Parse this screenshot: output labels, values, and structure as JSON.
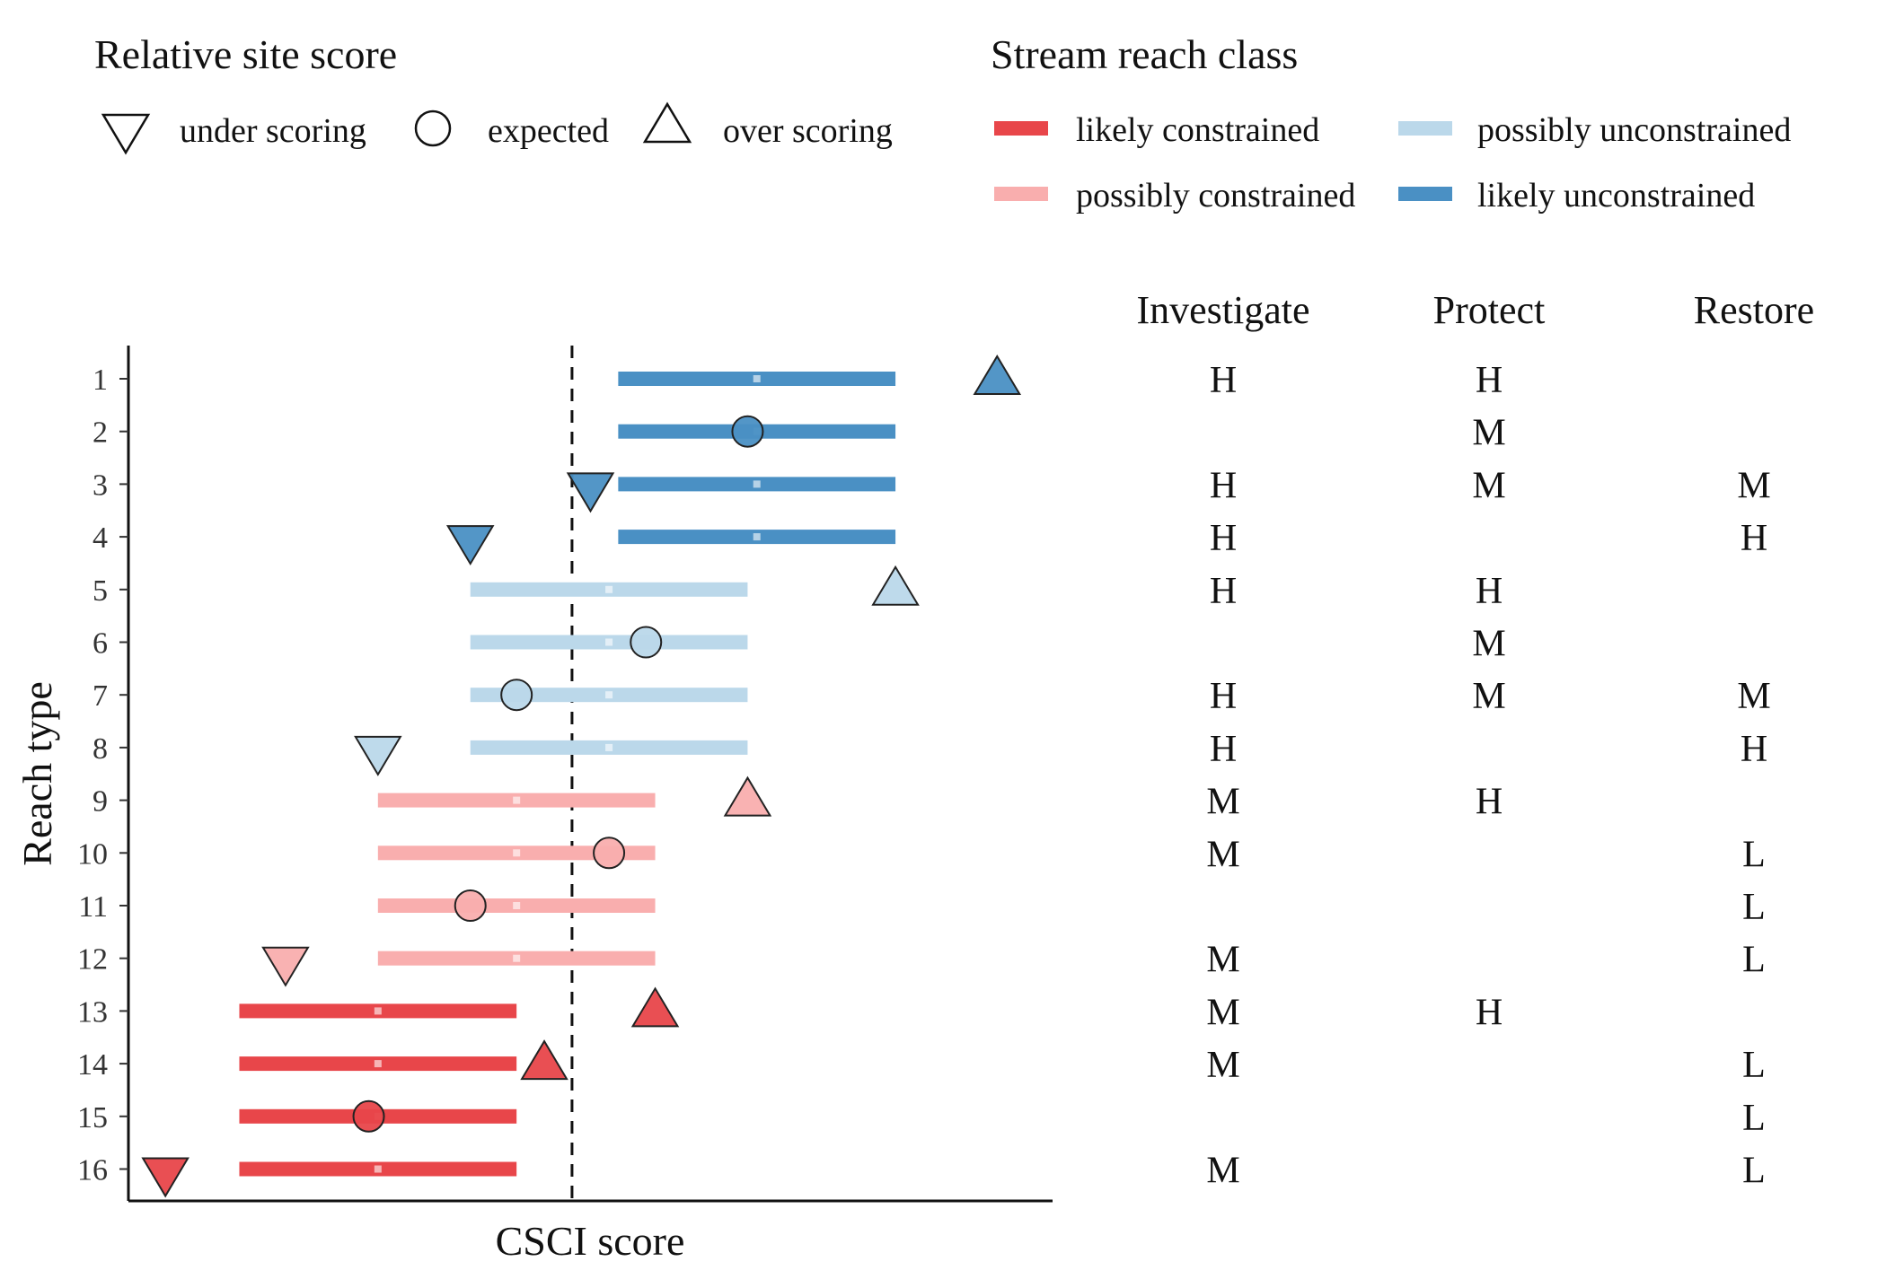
{
  "chart_data": {
    "type": "scatter",
    "xlabel": "CSCI score",
    "ylabel": "Reach type",
    "reference_line": "dashed vertical threshold",
    "y_categories": [
      "1",
      "2",
      "3",
      "4",
      "5",
      "6",
      "7",
      "8",
      "9",
      "10",
      "11",
      "12",
      "13",
      "14",
      "15",
      "16"
    ],
    "legend_site_score": {
      "title": "Relative site score",
      "items": [
        {
          "symbol": "triangle-down",
          "label": "under scoring"
        },
        {
          "symbol": "circle",
          "label": "expected"
        },
        {
          "symbol": "triangle-up",
          "label": "over scoring"
        }
      ]
    },
    "legend_reach_class": {
      "title": "Stream reach class",
      "items": [
        {
          "key": "lc",
          "label": "likely constrained",
          "color": "#E8464A"
        },
        {
          "key": "pc",
          "label": "possibly constrained",
          "color": "#F9AEAE"
        },
        {
          "key": "pu",
          "label": "possibly unconstrained",
          "color": "#BBD8EA"
        },
        {
          "key": "lu",
          "label": "likely unconstrained",
          "color": "#4A90C4"
        }
      ]
    },
    "rows": [
      {
        "reach": "1",
        "class": "lu",
        "range": [
          0.78,
          1.08
        ],
        "median": 0.93,
        "site": 1.19,
        "symbol": "triangle-up"
      },
      {
        "reach": "2",
        "class": "lu",
        "range": [
          0.78,
          1.08
        ],
        "median": 0.93,
        "site": 0.92,
        "symbol": "circle"
      },
      {
        "reach": "3",
        "class": "lu",
        "range": [
          0.78,
          1.08
        ],
        "median": 0.93,
        "site": 0.75,
        "symbol": "triangle-down"
      },
      {
        "reach": "4",
        "class": "lu",
        "range": [
          0.78,
          1.08
        ],
        "median": 0.93,
        "site": 0.62,
        "symbol": "triangle-down"
      },
      {
        "reach": "5",
        "class": "pu",
        "range": [
          0.62,
          0.92
        ],
        "median": 0.77,
        "site": 1.08,
        "symbol": "triangle-up"
      },
      {
        "reach": "6",
        "class": "pu",
        "range": [
          0.62,
          0.92
        ],
        "median": 0.77,
        "site": 0.81,
        "symbol": "circle"
      },
      {
        "reach": "7",
        "class": "pu",
        "range": [
          0.62,
          0.92
        ],
        "median": 0.77,
        "site": 0.67,
        "symbol": "circle"
      },
      {
        "reach": "8",
        "class": "pu",
        "range": [
          0.62,
          0.92
        ],
        "median": 0.77,
        "site": 0.52,
        "symbol": "triangle-down"
      },
      {
        "reach": "9",
        "class": "pc",
        "range": [
          0.52,
          0.82
        ],
        "median": 0.67,
        "site": 0.92,
        "symbol": "triangle-up"
      },
      {
        "reach": "10",
        "class": "pc",
        "range": [
          0.52,
          0.82
        ],
        "median": 0.67,
        "site": 0.77,
        "symbol": "circle"
      },
      {
        "reach": "11",
        "class": "pc",
        "range": [
          0.52,
          0.82
        ],
        "median": 0.67,
        "site": 0.62,
        "symbol": "circle"
      },
      {
        "reach": "12",
        "class": "pc",
        "range": [
          0.52,
          0.82
        ],
        "median": 0.67,
        "site": 0.42,
        "symbol": "triangle-down"
      },
      {
        "reach": "13",
        "class": "lc",
        "range": [
          0.37,
          0.67
        ],
        "median": 0.52,
        "site": 0.82,
        "symbol": "triangle-up"
      },
      {
        "reach": "14",
        "class": "lc",
        "range": [
          0.37,
          0.67
        ],
        "median": 0.52,
        "site": 0.7,
        "symbol": "triangle-up"
      },
      {
        "reach": "15",
        "class": "lc",
        "range": [
          0.37,
          0.67
        ],
        "median": 0.52,
        "site": 0.51,
        "symbol": "circle"
      },
      {
        "reach": "16",
        "class": "lc",
        "range": [
          0.37,
          0.67
        ],
        "median": 0.52,
        "site": 0.29,
        "symbol": "triangle-down"
      }
    ],
    "threshold": 0.73,
    "xlim": [
      0.25,
      1.25
    ],
    "priority_table": {
      "columns": [
        "Investigate",
        "Protect",
        "Restore"
      ],
      "rows": [
        [
          "H",
          "H",
          ""
        ],
        [
          "",
          "M",
          ""
        ],
        [
          "H",
          "M",
          "M"
        ],
        [
          "H",
          "",
          "H"
        ],
        [
          "H",
          "H",
          ""
        ],
        [
          "",
          "M",
          ""
        ],
        [
          "H",
          "M",
          "M"
        ],
        [
          "H",
          "",
          "H"
        ],
        [
          "M",
          "H",
          ""
        ],
        [
          "M",
          "",
          "L"
        ],
        [
          "",
          "",
          "L"
        ],
        [
          "M",
          "",
          "L"
        ],
        [
          "M",
          "H",
          ""
        ],
        [
          "M",
          "",
          "L"
        ],
        [
          "",
          "",
          "L"
        ],
        [
          "M",
          "",
          "L"
        ]
      ]
    }
  }
}
